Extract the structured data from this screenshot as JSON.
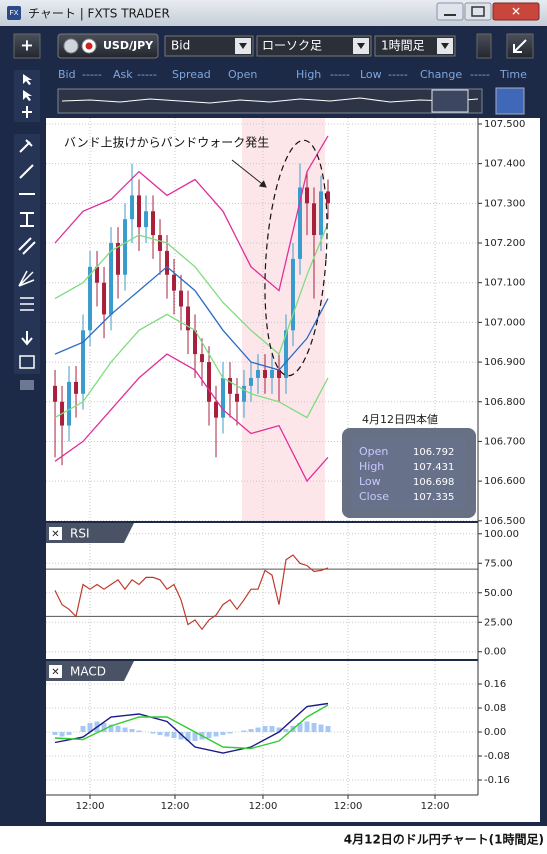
{
  "window": {
    "title": "チャート | FXTS TRADER"
  },
  "toolbar": {
    "symbol": "USD/JPY",
    "price_type": "Bid",
    "chart_type": "ローソク足",
    "timeframe": "1時間足"
  },
  "quote_bar": [
    "Bid",
    "-----",
    "Ask",
    "-----",
    "Spread",
    "Open",
    "High",
    "-----",
    "Low",
    "-----",
    "Change",
    "-----",
    "Time"
  ],
  "annotation": "バンド上抜けからバンドウォーク発生",
  "ohlc_box": {
    "title": "4月12日四本値",
    "rows": [
      [
        "Open",
        "106.792"
      ],
      [
        "High",
        "107.431"
      ],
      [
        "Low",
        "106.698"
      ],
      [
        "Close",
        "107.335"
      ]
    ]
  },
  "caption": "4月12日のドル円チャート(1時間足)",
  "time_axis": {
    "xlim": [
      -1.29,
      60.43
    ],
    "xticks": [
      {
        "value": 5,
        "label": "12:00"
      },
      {
        "value": 17.14,
        "label": "12:00"
      },
      {
        "value": 29.71,
        "label": "12:00"
      },
      {
        "value": 41.86,
        "label": "12:00"
      },
      {
        "value": 54.29,
        "label": "12:00"
      }
    ],
    "grid": true
  },
  "charts": [
    {
      "type": "candlestick",
      "up_color": "#3a9ccc",
      "down_color": "#a8203c",
      "open": [
        106.84,
        106.8,
        106.74,
        106.85,
        106.82,
        106.98,
        107.14,
        107.1,
        107.02,
        107.2,
        107.12,
        107.26,
        107.32,
        107.24,
        107.28,
        107.22,
        107.18,
        107.12,
        107.08,
        107.04,
        106.98,
        106.92,
        106.9,
        106.8,
        106.76,
        106.86,
        106.82,
        106.8,
        106.84,
        106.86,
        106.88,
        106.86,
        106.88,
        106.86,
        106.98,
        107.16,
        107.34,
        107.3,
        107.22,
        107.33
      ],
      "high": [
        106.88,
        106.84,
        106.89,
        106.89,
        107.02,
        107.18,
        107.18,
        107.14,
        107.24,
        107.24,
        107.3,
        107.4,
        107.36,
        107.32,
        107.32,
        107.26,
        107.22,
        107.16,
        107.12,
        107.08,
        107.02,
        106.96,
        106.94,
        106.84,
        106.9,
        106.9,
        106.86,
        106.88,
        106.9,
        106.92,
        106.92,
        106.92,
        106.92,
        107.02,
        107.2,
        107.4,
        107.38,
        107.34,
        107.37,
        107.36
      ],
      "low": [
        106.66,
        106.64,
        106.7,
        106.76,
        106.78,
        106.94,
        107.04,
        106.96,
        106.98,
        107.06,
        107.08,
        107.2,
        107.18,
        107.2,
        107.16,
        107.12,
        107.06,
        107.02,
        106.98,
        106.92,
        106.86,
        106.84,
        106.74,
        106.66,
        106.72,
        106.76,
        106.74,
        106.76,
        106.8,
        106.82,
        106.82,
        106.82,
        106.8,
        106.82,
        106.94,
        107.12,
        107.22,
        107.06,
        107.18,
        107.26
      ],
      "close": [
        106.8,
        106.74,
        106.85,
        106.82,
        106.98,
        107.14,
        107.1,
        107.02,
        107.2,
        107.12,
        107.26,
        107.32,
        107.24,
        107.28,
        107.22,
        107.18,
        107.12,
        107.08,
        107.04,
        106.98,
        106.92,
        106.9,
        106.8,
        106.76,
        106.86,
        106.82,
        106.8,
        106.84,
        106.86,
        106.88,
        106.86,
        106.88,
        106.86,
        106.98,
        107.16,
        107.34,
        107.3,
        107.22,
        107.33,
        107.3
      ],
      "overlays": [
        {
          "color": "#e0309a",
          "x": [
            0,
            4,
            8,
            12,
            16,
            20,
            24,
            28,
            32,
            36,
            39
          ],
          "values": [
            107.2,
            107.28,
            107.31,
            107.38,
            107.32,
            107.36,
            107.28,
            107.14,
            107.08,
            107.38,
            107.47
          ]
        },
        {
          "color": "#7fdc7f",
          "x": [
            0,
            4,
            8,
            12,
            16,
            20,
            24,
            28,
            32,
            36,
            39
          ],
          "values": [
            107.06,
            107.1,
            107.18,
            107.22,
            107.2,
            107.14,
            107.05,
            106.98,
            106.92,
            107.12,
            107.25
          ]
        },
        {
          "color": "#2a6cc4",
          "x": [
            0,
            4,
            8,
            12,
            16,
            20,
            24,
            28,
            32,
            36,
            39
          ],
          "values": [
            106.92,
            106.95,
            107.02,
            107.08,
            107.14,
            107.08,
            106.98,
            106.9,
            106.88,
            106.96,
            107.06
          ]
        },
        {
          "color": "#7fdc7f",
          "x": [
            0,
            4,
            8,
            12,
            16,
            20,
            24,
            28,
            32,
            36,
            39
          ],
          "values": [
            106.76,
            106.8,
            106.9,
            106.98,
            107.02,
            106.98,
            106.86,
            106.82,
            106.8,
            106.76,
            106.86
          ]
        },
        {
          "color": "#e0309a",
          "x": [
            0,
            4,
            8,
            12,
            16,
            20,
            24,
            28,
            32,
            36,
            39
          ],
          "values": [
            106.65,
            106.7,
            106.78,
            106.86,
            106.92,
            106.88,
            106.78,
            106.72,
            106.74,
            106.6,
            106.66
          ]
        }
      ],
      "ylim": [
        106.497,
        107.515
      ],
      "yticks": [
        {
          "value": 107.5,
          "label": "107.500"
        },
        {
          "value": 107.4,
          "label": "107.400"
        },
        {
          "value": 107.3,
          "label": "107.300"
        },
        {
          "value": 107.2,
          "label": "107.200"
        },
        {
          "value": 107.1,
          "label": "107.100"
        },
        {
          "value": 107.0,
          "label": "107.000"
        },
        {
          "value": 106.9,
          "label": "106.900"
        },
        {
          "value": 106.8,
          "label": "106.800"
        },
        {
          "value": 106.7,
          "label": "106.700"
        },
        {
          "value": 106.6,
          "label": "106.600"
        },
        {
          "value": 106.5,
          "label": "106.500"
        }
      ],
      "grid": true
    },
    {
      "type": "line",
      "title": "RSI",
      "color": "#c0392b",
      "values": [
        52,
        40,
        36,
        30,
        57,
        53,
        57,
        53,
        57,
        61,
        53,
        61,
        57,
        63,
        63,
        61,
        53,
        57,
        44,
        23,
        27,
        19,
        27,
        31,
        40,
        44,
        36,
        44,
        53,
        53,
        69,
        65,
        40,
        78,
        82,
        75,
        73,
        68,
        69,
        71
      ],
      "levels": [
        70,
        30
      ],
      "level_color": "#555555",
      "ylim": [
        -7,
        110
      ],
      "yticks": [
        {
          "value": 100,
          "label": "100.00"
        },
        {
          "value": 75,
          "label": "75.00"
        },
        {
          "value": 50,
          "label": "50.00"
        },
        {
          "value": 25,
          "label": "25.00"
        },
        {
          "value": 0,
          "label": "0.00"
        }
      ],
      "grid": true
    },
    {
      "type": "macd",
      "title": "MACD",
      "histogram": {
        "color": "#a8c8f4",
        "values": [
          -0.01,
          -0.015,
          -0.01,
          0.0,
          0.02,
          0.03,
          0.035,
          0.03,
          0.025,
          0.02,
          0.015,
          0.01,
          0.005,
          0.0,
          -0.005,
          -0.01,
          -0.015,
          -0.02,
          -0.025,
          -0.03,
          -0.03,
          -0.025,
          -0.02,
          -0.015,
          -0.01,
          -0.005,
          0.0,
          0.005,
          0.01,
          0.015,
          0.02,
          0.02,
          0.015,
          0.01,
          0.02,
          0.03,
          0.035,
          0.03,
          0.025,
          0.02
        ]
      },
      "series": [
        {
          "color": "#1a1a8a",
          "x": [
            0,
            4,
            8,
            12,
            16,
            20,
            24,
            28,
            32,
            36,
            39
          ],
          "values": [
            -0.035,
            -0.017,
            0.05,
            0.06,
            0.035,
            -0.05,
            -0.07,
            -0.05,
            0.0,
            0.085,
            0.095
          ]
        },
        {
          "color": "#33cc33",
          "x": [
            0,
            4,
            8,
            12,
            16,
            20,
            24,
            28,
            32,
            36,
            39
          ],
          "values": [
            -0.02,
            -0.025,
            0.02,
            0.05,
            0.05,
            0.0,
            -0.05,
            -0.055,
            -0.03,
            0.05,
            0.09
          ]
        }
      ],
      "ylim": [
        -0.21,
        0.24
      ],
      "yticks": [
        0.16,
        0.08,
        {
          "value": 0,
          "label": "0.00"
        },
        -0.08,
        -0.16
      ],
      "grid": true
    }
  ]
}
